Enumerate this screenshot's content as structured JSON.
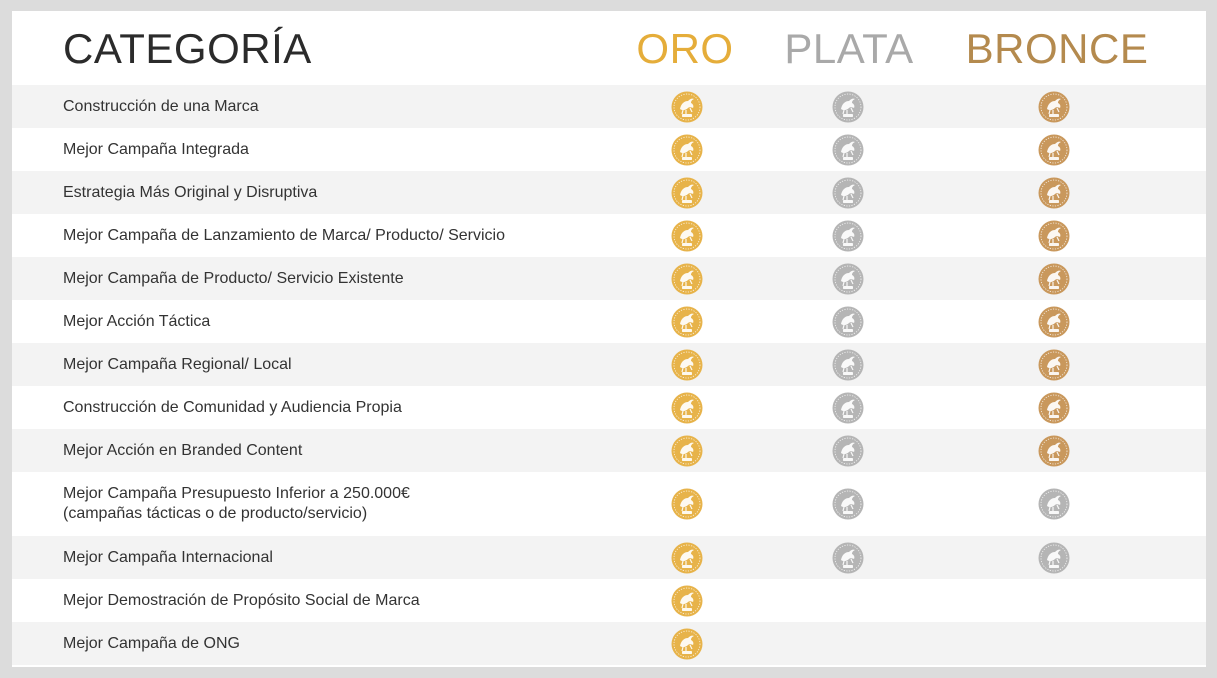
{
  "header": {
    "category": "CATEGORÍA",
    "oro": "ORO",
    "plata": "PLATA",
    "bronce": "BRONCE"
  },
  "colors": {
    "oro": "#e5ad3a",
    "plata": "#a9a9a9",
    "bronce": "#b48a4e",
    "medal_gold": "#e7b34a",
    "medal_silver": "#b5b5b5",
    "medal_bronze": "#c9985c"
  },
  "rows": [
    {
      "label": "Construcción de una Marca",
      "oro": "gold",
      "plata": "silver",
      "bronce": "bronze"
    },
    {
      "label": "Mejor Campaña Integrada",
      "oro": "gold",
      "plata": "silver",
      "bronce": "bronze"
    },
    {
      "label": "Estrategia Más Original y Disruptiva",
      "oro": "gold",
      "plata": "silver",
      "bronce": "bronze"
    },
    {
      "label": "Mejor Campaña de Lanzamiento de Marca/ Producto/ Servicio",
      "oro": "gold",
      "plata": "silver",
      "bronce": "bronze"
    },
    {
      "label": "Mejor Campaña de Producto/ Servicio Existente",
      "oro": "gold",
      "plata": "silver",
      "bronce": "bronze"
    },
    {
      "label": "Mejor Acción Táctica",
      "oro": "gold",
      "plata": "silver",
      "bronce": "bronze"
    },
    {
      "label": "Mejor Campaña Regional/ Local",
      "oro": "gold",
      "plata": "silver",
      "bronce": "bronze"
    },
    {
      "label": "Construcción de Comunidad y Audiencia Propia",
      "oro": "gold",
      "plata": "silver",
      "bronce": "bronze"
    },
    {
      "label": "Mejor Acción en Branded Content",
      "oro": "gold",
      "plata": "silver",
      "bronce": "bronze"
    },
    {
      "label": "Mejor Campaña Presupuesto Inferior a 250.000€\n(campañas tácticas o de producto/servicio)",
      "tall": true,
      "oro": "gold",
      "plata": "silver",
      "bronce": "silver"
    },
    {
      "label": "Mejor Campaña Internacional",
      "oro": "gold",
      "plata": "silver",
      "bronce": "silver"
    },
    {
      "label": "Mejor Demostración de Propósito Social de Marca",
      "oro": "gold",
      "plata": null,
      "bronce": null
    },
    {
      "label": "Mejor Campaña de ONG",
      "oro": "gold",
      "plata": null,
      "bronce": null
    }
  ]
}
